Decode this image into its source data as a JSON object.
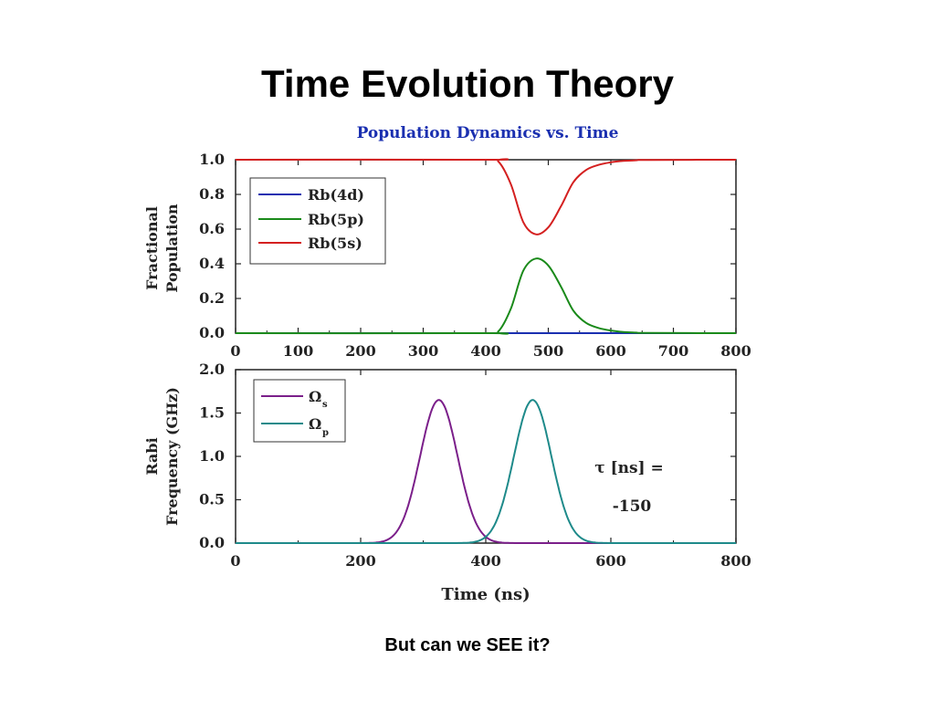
{
  "slide": {
    "title": "Time Evolution Theory",
    "caption": "But can we SEE it?"
  },
  "chart_data": [
    {
      "type": "line",
      "title": "Population Dynamics vs. Time",
      "ylabel_line1": "Fractional",
      "ylabel_line2": "Population",
      "xlim": [
        0,
        800
      ],
      "ylim": [
        0,
        1.0
      ],
      "xticks": [
        "0",
        "100",
        "200",
        "300",
        "400",
        "500",
        "600",
        "700",
        "800"
      ],
      "yticks": [
        "0.0",
        "0.2",
        "0.4",
        "0.6",
        "0.8",
        "1.0"
      ],
      "legend_position": "top-left",
      "series": [
        {
          "name": "Rb(4d)",
          "color": "#1a2fb0",
          "x": [
            0,
            800
          ],
          "y": [
            0,
            0
          ]
        },
        {
          "name": "Rb(5p)",
          "color": "#1a8a1a",
          "x": [
            0,
            400,
            420,
            440,
            460,
            480,
            500,
            520,
            540,
            560,
            580,
            600,
            620,
            640,
            660,
            800
          ],
          "y": [
            0,
            0,
            0.01,
            0.14,
            0.36,
            0.43,
            0.39,
            0.27,
            0.13,
            0.06,
            0.03,
            0.015,
            0.007,
            0.003,
            0.001,
            0
          ]
        },
        {
          "name": "Rb(5s)",
          "color": "#d42020",
          "x": [
            0,
            400,
            420,
            440,
            460,
            480,
            500,
            520,
            540,
            560,
            580,
            600,
            620,
            640,
            660,
            800
          ],
          "y": [
            1.0,
            1.0,
            0.99,
            0.86,
            0.64,
            0.57,
            0.61,
            0.73,
            0.87,
            0.94,
            0.97,
            0.985,
            0.993,
            0.997,
            0.999,
            1.0
          ]
        }
      ]
    },
    {
      "type": "line",
      "xlabel": "Time (ns)",
      "ylabel_line1": "Rabi",
      "ylabel_line2": "Frequency (GHz)",
      "xlim": [
        0,
        800
      ],
      "ylim": [
        0,
        2.0
      ],
      "xticks": [
        "0",
        "200",
        "400",
        "600",
        "800"
      ],
      "yticks": [
        "0.0",
        "0.5",
        "1.0",
        "1.5",
        "2.0"
      ],
      "legend_position": "top-left",
      "annotation_line1": "τ [ns] =",
      "annotation_line2": "-150",
      "series": [
        {
          "name": "Ω",
          "subscript": "s",
          "color": "#7b1f8a",
          "peak_x": 325,
          "peak_y": 1.65,
          "width_sigma": 30
        },
        {
          "name": "Ω",
          "subscript": "p",
          "color": "#1e8a8a",
          "peak_x": 475,
          "peak_y": 1.65,
          "width_sigma": 30
        }
      ]
    }
  ]
}
